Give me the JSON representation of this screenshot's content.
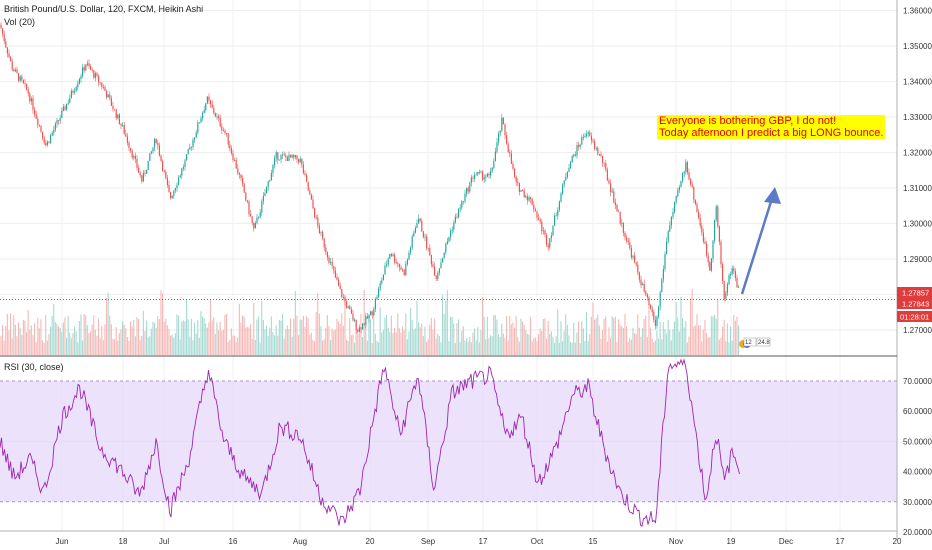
{
  "header": {
    "title": "British Pound/U.S. Dollar, 120, FXCM, Heikin Ashi",
    "volume_label": "Vol (20)",
    "rsi_label": "RSI (30, close)"
  },
  "annotation": {
    "line1": "Everyone is bothering GBP, I do not!",
    "line2": "Today afternoon I predict a big LONG bounce."
  },
  "price_tags": {
    "bid": "1.27857",
    "ask": "1.27843",
    "countdown": "01:28:01"
  },
  "badges": {
    "left": "12",
    "right": "24.8"
  },
  "colors": {
    "up": "#26a69a",
    "down": "#ef5350",
    "rsi_line": "#9c27b0",
    "rsi_band": "#e6d5fb",
    "arrow": "#5b7bc9",
    "price_tag": "#e03c3c",
    "note_bg": "#ffff00",
    "note_text": "#e60000"
  },
  "chart_data": [
    {
      "type": "candlestick",
      "title": "British Pound/U.S. Dollar, 120, FXCM, Heikin Ashi",
      "y_ticks": [
        "1.36000",
        "1.35000",
        "1.34000",
        "1.33000",
        "1.32000",
        "1.31000",
        "1.30000",
        "1.29000",
        "1.28000",
        "1.27000"
      ],
      "ylim": [
        1.266,
        1.362
      ],
      "x_ticks": [
        "Jun",
        "18",
        "Jul",
        "16",
        "Aug",
        "20",
        "Sep",
        "17",
        "Oct",
        "15",
        "Nov",
        "19",
        "Dec",
        "17",
        "20"
      ],
      "price_path": [
        {
          "x": 0,
          "y": 1.356
        },
        {
          "x": 12,
          "y": 1.344
        },
        {
          "x": 28,
          "y": 1.337
        },
        {
          "x": 46,
          "y": 1.322
        },
        {
          "x": 62,
          "y": 1.331
        },
        {
          "x": 86,
          "y": 1.345
        },
        {
          "x": 104,
          "y": 1.338
        },
        {
          "x": 124,
          "y": 1.326
        },
        {
          "x": 142,
          "y": 1.312
        },
        {
          "x": 156,
          "y": 1.324
        },
        {
          "x": 170,
          "y": 1.307
        },
        {
          "x": 186,
          "y": 1.318
        },
        {
          "x": 207,
          "y": 1.335
        },
        {
          "x": 226,
          "y": 1.325
        },
        {
          "x": 242,
          "y": 1.311
        },
        {
          "x": 254,
          "y": 1.298
        },
        {
          "x": 276,
          "y": 1.319
        },
        {
          "x": 300,
          "y": 1.318
        },
        {
          "x": 318,
          "y": 1.299
        },
        {
          "x": 340,
          "y": 1.281
        },
        {
          "x": 358,
          "y": 1.27
        },
        {
          "x": 372,
          "y": 1.275
        },
        {
          "x": 390,
          "y": 1.292
        },
        {
          "x": 404,
          "y": 1.286
        },
        {
          "x": 418,
          "y": 1.302
        },
        {
          "x": 436,
          "y": 1.285
        },
        {
          "x": 452,
          "y": 1.299
        },
        {
          "x": 474,
          "y": 1.314
        },
        {
          "x": 490,
          "y": 1.313
        },
        {
          "x": 502,
          "y": 1.329
        },
        {
          "x": 516,
          "y": 1.311
        },
        {
          "x": 532,
          "y": 1.306
        },
        {
          "x": 548,
          "y": 1.294
        },
        {
          "x": 568,
          "y": 1.316
        },
        {
          "x": 586,
          "y": 1.326
        },
        {
          "x": 602,
          "y": 1.318
        },
        {
          "x": 620,
          "y": 1.301
        },
        {
          "x": 638,
          "y": 1.286
        },
        {
          "x": 656,
          "y": 1.271
        },
        {
          "x": 668,
          "y": 1.298
        },
        {
          "x": 686,
          "y": 1.317
        },
        {
          "x": 700,
          "y": 1.3
        },
        {
          "x": 710,
          "y": 1.287
        },
        {
          "x": 716,
          "y": 1.305
        },
        {
          "x": 724,
          "y": 1.279
        },
        {
          "x": 732,
          "y": 1.288
        },
        {
          "x": 740,
          "y": 1.28
        }
      ],
      "current_price_line": 1.2786
    },
    {
      "type": "line",
      "title": "RSI (30, close)",
      "y_ticks": [
        "70.0000",
        "60.0000",
        "50.0000",
        "40.0000",
        "30.0000",
        "20.0000"
      ],
      "ylim": [
        18,
        77
      ],
      "bands": [
        30,
        70
      ],
      "rsi_path": [
        {
          "x": 0,
          "y": 50
        },
        {
          "x": 14,
          "y": 38
        },
        {
          "x": 30,
          "y": 44
        },
        {
          "x": 44,
          "y": 33
        },
        {
          "x": 62,
          "y": 58
        },
        {
          "x": 80,
          "y": 68
        },
        {
          "x": 100,
          "y": 48
        },
        {
          "x": 120,
          "y": 41
        },
        {
          "x": 140,
          "y": 32
        },
        {
          "x": 156,
          "y": 50
        },
        {
          "x": 170,
          "y": 27
        },
        {
          "x": 188,
          "y": 43
        },
        {
          "x": 208,
          "y": 74
        },
        {
          "x": 224,
          "y": 50
        },
        {
          "x": 244,
          "y": 38
        },
        {
          "x": 262,
          "y": 33
        },
        {
          "x": 280,
          "y": 55
        },
        {
          "x": 300,
          "y": 52
        },
        {
          "x": 320,
          "y": 32
        },
        {
          "x": 342,
          "y": 23
        },
        {
          "x": 360,
          "y": 34
        },
        {
          "x": 372,
          "y": 55
        },
        {
          "x": 384,
          "y": 75
        },
        {
          "x": 400,
          "y": 52
        },
        {
          "x": 418,
          "y": 72
        },
        {
          "x": 434,
          "y": 34
        },
        {
          "x": 452,
          "y": 66
        },
        {
          "x": 472,
          "y": 70
        },
        {
          "x": 490,
          "y": 72
        },
        {
          "x": 506,
          "y": 52
        },
        {
          "x": 522,
          "y": 58
        },
        {
          "x": 538,
          "y": 36
        },
        {
          "x": 556,
          "y": 48
        },
        {
          "x": 572,
          "y": 65
        },
        {
          "x": 588,
          "y": 68
        },
        {
          "x": 604,
          "y": 48
        },
        {
          "x": 620,
          "y": 33
        },
        {
          "x": 640,
          "y": 25
        },
        {
          "x": 656,
          "y": 24
        },
        {
          "x": 668,
          "y": 75
        },
        {
          "x": 686,
          "y": 76
        },
        {
          "x": 696,
          "y": 52
        },
        {
          "x": 706,
          "y": 30
        },
        {
          "x": 716,
          "y": 54
        },
        {
          "x": 724,
          "y": 36
        },
        {
          "x": 732,
          "y": 46
        },
        {
          "x": 740,
          "y": 41
        }
      ]
    }
  ]
}
